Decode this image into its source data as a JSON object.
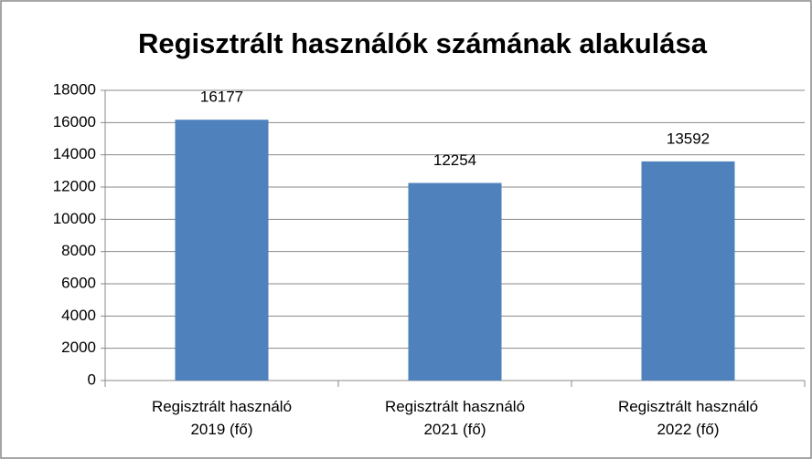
{
  "chart_data": {
    "type": "bar",
    "title": "Regisztrált használók számának alakulása",
    "categories": [
      "Regisztrált használó 2019 (fő)",
      "Regisztrált használó 2021 (fő)",
      "Regisztrált használó 2022 (fő)"
    ],
    "values": [
      16177,
      12254,
      13592
    ],
    "color": "#4f81bd",
    "ylim": [
      0,
      18000
    ],
    "yticks": [
      0,
      2000,
      4000,
      6000,
      8000,
      10000,
      12000,
      14000,
      16000,
      18000
    ],
    "grid": true
  }
}
